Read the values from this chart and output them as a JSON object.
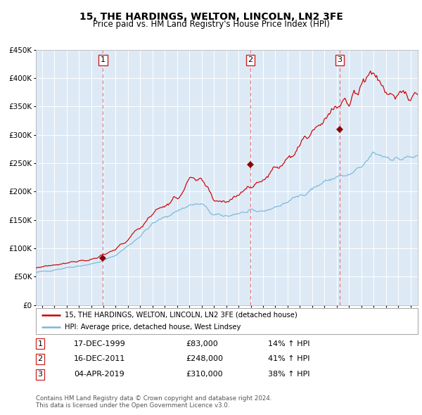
{
  "title": "15, THE HARDINGS, WELTON, LINCOLN, LN2 3FE",
  "subtitle": "Price paid vs. HM Land Registry's House Price Index (HPI)",
  "legend_line1": "15, THE HARDINGS, WELTON, LINCOLN, LN2 3FE (detached house)",
  "legend_line2": "HPI: Average price, detached house, West Lindsey",
  "table_rows": [
    [
      "1",
      "17-DEC-1999",
      "£83,000",
      "14% ↑ HPI"
    ],
    [
      "2",
      "16-DEC-2011",
      "£248,000",
      "41% ↑ HPI"
    ],
    [
      "3",
      "04-APR-2019",
      "£310,000",
      "38% ↑ HPI"
    ]
  ],
  "footer1": "Contains HM Land Registry data © Crown copyright and database right 2024.",
  "footer2": "This data is licensed under the Open Government Licence v3.0.",
  "trans_years": [
    1999.96,
    2011.96,
    2019.25
  ],
  "trans_prices": [
    83000,
    248000,
    310000
  ],
  "trans_labels": [
    "1",
    "2",
    "3"
  ],
  "ylim": [
    0,
    450000
  ],
  "yticks": [
    0,
    50000,
    100000,
    150000,
    200000,
    250000,
    300000,
    350000,
    400000,
    450000
  ],
  "ytick_labels": [
    "£0",
    "£50K",
    "£100K",
    "£150K",
    "£200K",
    "£250K",
    "£300K",
    "£350K",
    "£400K",
    "£450K"
  ],
  "xlim_min": 1994.5,
  "xlim_max": 2025.6,
  "xtick_years": [
    1995,
    1996,
    1997,
    1998,
    1999,
    2000,
    2001,
    2002,
    2003,
    2004,
    2005,
    2006,
    2007,
    2008,
    2009,
    2010,
    2011,
    2012,
    2013,
    2014,
    2015,
    2016,
    2017,
    2018,
    2019,
    2020,
    2021,
    2022,
    2023,
    2024,
    2025
  ],
  "hpi_color": "#7ab8d9",
  "price_color": "#cc0000",
  "marker_color": "#8b0000",
  "bg_color": "#ddeaf6",
  "grid_color": "#ffffff",
  "dashed_color": "#e87878",
  "box_edge_color": "#cc2222",
  "legend_border_color": "#aaaaaa",
  "spine_color": "#aaaaaa"
}
